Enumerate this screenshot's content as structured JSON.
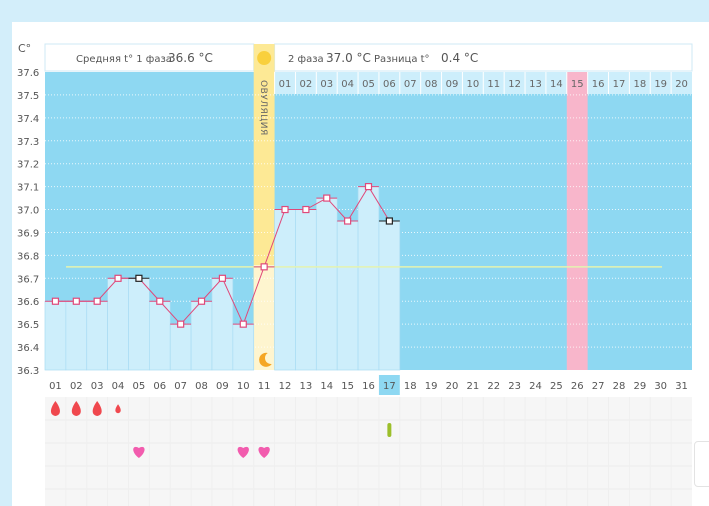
{
  "chart_data": {
    "type": "line",
    "unit_label": "C°",
    "y_ticks": [
      "37.6",
      "37.5",
      "37.4",
      "37.3",
      "37.2",
      "37.1",
      "37.0",
      "36.9",
      "36.8",
      "36.7",
      "36.6",
      "36.5",
      "36.4",
      "36.3"
    ],
    "ylim": [
      36.3,
      37.6
    ],
    "days": [
      "01",
      "02",
      "03",
      "04",
      "05",
      "06",
      "07",
      "08",
      "09",
      "10",
      "11",
      "12",
      "13",
      "14",
      "15",
      "16",
      "17",
      "18",
      "19",
      "20",
      "21",
      "22",
      "23",
      "24",
      "25",
      "26",
      "27",
      "28",
      "29",
      "30",
      "31"
    ],
    "next_cycle_days": [
      "01",
      "02",
      "03",
      "04",
      "05",
      "06",
      "07",
      "08",
      "09",
      "10",
      "11",
      "12",
      "13",
      "14",
      "15",
      "16",
      "17",
      "18",
      "19",
      "20"
    ],
    "temperatures": [
      36.6,
      36.6,
      36.6,
      36.7,
      36.7,
      36.6,
      36.5,
      36.6,
      36.7,
      36.5,
      36.75,
      37.0,
      37.0,
      37.05,
      36.95,
      37.1,
      36.95
    ],
    "black_markers_days": [
      5,
      17
    ],
    "cover_line": 36.75,
    "ovulation_day": 11,
    "ovulation_label": "ОВУЛЯЦИЯ",
    "today": 17,
    "predicted_next_ovulation_day": 26,
    "predicted_next_label": "15"
  },
  "header": {
    "phase1": "Средняя t° 1 фаза",
    "phase1_value": "36.6 °C",
    "phase2": "2 фаза",
    "phase2_value": "37.0 °C",
    "diff": "Разница t°",
    "diff_value": "0.4 °C"
  },
  "symptoms": {
    "bleeding": [
      {
        "day": 1,
        "size": "large"
      },
      {
        "day": 2,
        "size": "large"
      },
      {
        "day": 3,
        "size": "large"
      },
      {
        "day": 4,
        "size": "small"
      }
    ],
    "test_days": [
      17
    ],
    "intercourse_days": [
      5,
      10,
      11
    ]
  },
  "colors": {
    "bg": "#8ed8f2",
    "bar": "#cdeefb",
    "ovulation": "#fde995",
    "predicted": "#f8b6cb",
    "line": "#e0497a",
    "cover": "#e4f3b0",
    "today": "#8ed8f2",
    "drop": "#f0484e",
    "heart": "#f25cae",
    "test": "#9cbf2b",
    "sun": "#f9d03d",
    "moon": "#f5a623"
  }
}
